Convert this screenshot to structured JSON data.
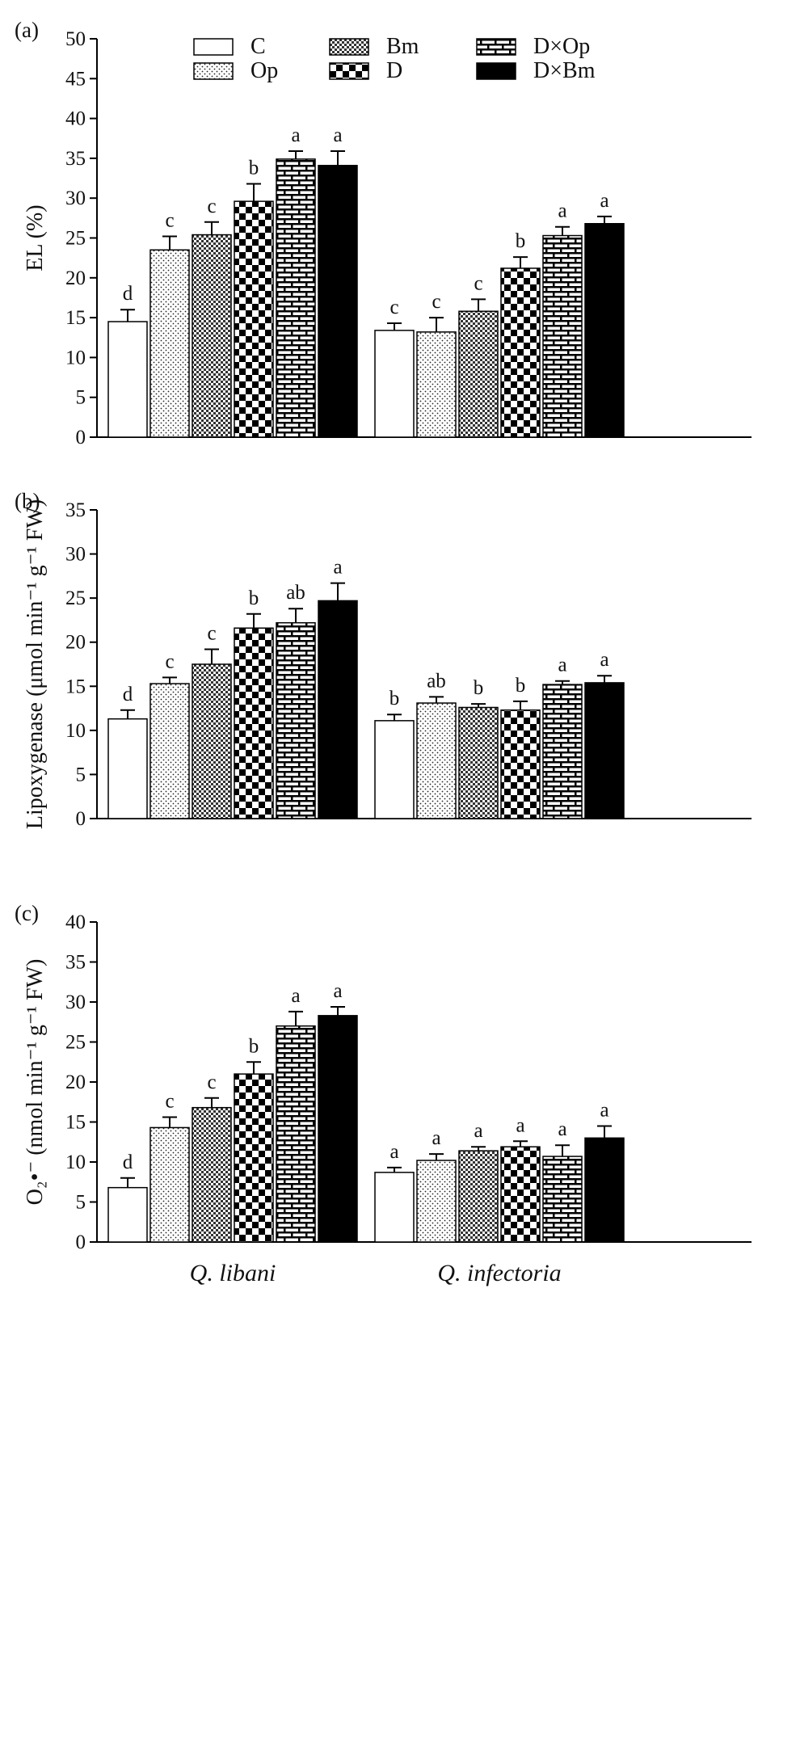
{
  "legend": [
    "C",
    "Op",
    "Bm",
    "D",
    "D×Op",
    "D×Bm"
  ],
  "chart_data": [
    {
      "type": "bar",
      "panel_label": "(a)",
      "ylabel": "EL (%)",
      "ylim": [
        0,
        50
      ],
      "yticks": [
        "0",
        "5",
        "10",
        "15",
        "20",
        "25",
        "30",
        "35",
        "40",
        "45",
        "50"
      ],
      "categories": [
        "Q. libani",
        "Q. infectoria"
      ],
      "series": [
        {
          "name": "C",
          "values": [
            14.5,
            13.4
          ],
          "errors": [
            1.5,
            0.9
          ],
          "letters": [
            "d",
            "c"
          ]
        },
        {
          "name": "Op",
          "values": [
            23.5,
            13.2
          ],
          "errors": [
            1.7,
            1.8
          ],
          "letters": [
            "c",
            "c"
          ]
        },
        {
          "name": "Bm",
          "values": [
            25.4,
            15.8
          ],
          "errors": [
            1.6,
            1.5
          ],
          "letters": [
            "c",
            "c"
          ]
        },
        {
          "name": "D",
          "values": [
            29.6,
            21.2
          ],
          "errors": [
            2.2,
            1.4
          ],
          "letters": [
            "b",
            "b"
          ]
        },
        {
          "name": "D×Op",
          "values": [
            34.9,
            25.3
          ],
          "errors": [
            1.0,
            1.1
          ],
          "letters": [
            "a",
            "a"
          ]
        },
        {
          "name": "D×Bm",
          "values": [
            34.1,
            26.8
          ],
          "errors": [
            1.8,
            0.9
          ],
          "letters": [
            "a",
            "a"
          ]
        }
      ]
    },
    {
      "type": "bar",
      "panel_label": "(b)",
      "ylabel": "Lipoxygenase (μmol min⁻¹ g⁻¹ FW)",
      "ylim": [
        0,
        35
      ],
      "yticks": [
        "0",
        "5",
        "10",
        "15",
        "20",
        "25",
        "30",
        "35"
      ],
      "categories": [
        "Q. libani",
        "Q. infectoria"
      ],
      "series": [
        {
          "name": "C",
          "values": [
            11.3,
            11.1
          ],
          "errors": [
            1.0,
            0.7
          ],
          "letters": [
            "d",
            "b"
          ]
        },
        {
          "name": "Op",
          "values": [
            15.3,
            13.1
          ],
          "errors": [
            0.7,
            0.7
          ],
          "letters": [
            "c",
            "ab"
          ]
        },
        {
          "name": "Bm",
          "values": [
            17.5,
            12.6
          ],
          "errors": [
            1.7,
            0.4
          ],
          "letters": [
            "c",
            "b"
          ]
        },
        {
          "name": "D",
          "values": [
            21.6,
            12.3
          ],
          "errors": [
            1.6,
            1.0
          ],
          "letters": [
            "b",
            "b"
          ]
        },
        {
          "name": "D×Op",
          "values": [
            22.2,
            15.2
          ],
          "errors": [
            1.6,
            0.4
          ],
          "letters": [
            "ab",
            "a"
          ]
        },
        {
          "name": "D×Bm",
          "values": [
            24.7,
            15.4
          ],
          "errors": [
            2.0,
            0.8
          ],
          "letters": [
            "a",
            "a"
          ]
        }
      ]
    },
    {
      "type": "bar",
      "panel_label": "(c)",
      "ylabel": "O₂•⁻ (nmol min⁻¹ g⁻¹ FW)",
      "ylim": [
        0,
        40
      ],
      "yticks": [
        "0",
        "5",
        "10",
        "15",
        "20",
        "25",
        "30",
        "35",
        "40"
      ],
      "categories": [
        "Q. libani",
        "Q. infectoria"
      ],
      "series": [
        {
          "name": "C",
          "values": [
            6.8,
            8.7
          ],
          "errors": [
            1.2,
            0.6
          ],
          "letters": [
            "d",
            "a"
          ]
        },
        {
          "name": "Op",
          "values": [
            14.3,
            10.2
          ],
          "errors": [
            1.3,
            0.8
          ],
          "letters": [
            "c",
            "a"
          ]
        },
        {
          "name": "Bm",
          "values": [
            16.8,
            11.4
          ],
          "errors": [
            1.2,
            0.5
          ],
          "letters": [
            "c",
            "a"
          ]
        },
        {
          "name": "D",
          "values": [
            21.0,
            11.9
          ],
          "errors": [
            1.5,
            0.7
          ],
          "letters": [
            "b",
            "a"
          ]
        },
        {
          "name": "D×Op",
          "values": [
            27.0,
            10.7
          ],
          "errors": [
            1.8,
            1.4
          ],
          "letters": [
            "a",
            "a"
          ]
        },
        {
          "name": "D×Bm",
          "values": [
            28.3,
            13.0
          ],
          "errors": [
            1.1,
            1.5
          ],
          "letters": [
            "a",
            "a"
          ]
        }
      ]
    }
  ]
}
